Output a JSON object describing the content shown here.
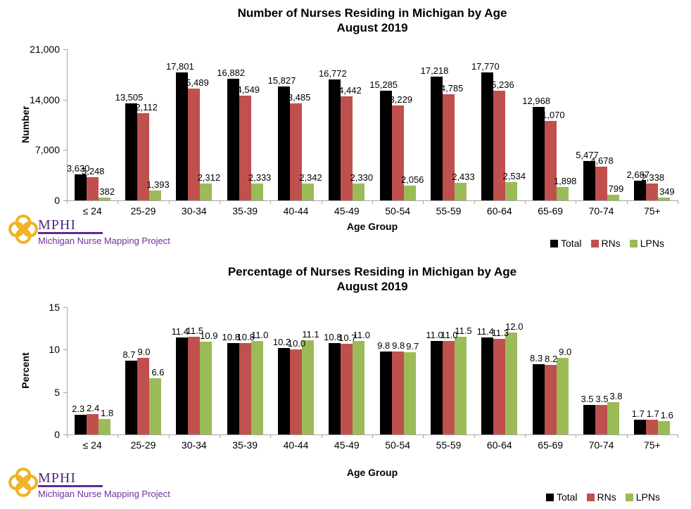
{
  "page": {
    "background": "#ffffff"
  },
  "brand": {
    "name": "MPHI",
    "tagline": "Michigan Nurse Mapping Project",
    "logo_gold": "#F0B323",
    "mphi_purple": "#4E2A84",
    "underline_purple": "#5C2D91",
    "tagline_purple": "#7030A0"
  },
  "colors": {
    "axis": "#A6A6A6",
    "total": "#000000",
    "rns": "#C0504D",
    "lpns": "#9BBB59"
  },
  "chart_data": [
    {
      "type": "bar",
      "title": "Number of Nurses Residing in Michigan by Age",
      "subtitle": "August 2019",
      "xlabel": "Age Group",
      "ylabel": "Number",
      "ylim": [
        0,
        21000
      ],
      "yticks": [
        0,
        7000,
        14000,
        21000
      ],
      "ytick_labels": [
        "0",
        "7,000",
        "14,000",
        "21,000"
      ],
      "grid": false,
      "legend_position": "bottom-right",
      "categories": [
        "≤ 24",
        "25-29",
        "30-34",
        "35-39",
        "40-44",
        "45-49",
        "50-54",
        "55-59",
        "60-64",
        "65-69",
        "70-74",
        "75+"
      ],
      "series": [
        {
          "name": "Total",
          "color": "#000000",
          "values": [
            3630,
            13505,
            17801,
            16882,
            15827,
            16772,
            15285,
            17218,
            17770,
            12968,
            5477,
            2687
          ],
          "labels": [
            "3,630",
            "13,505",
            "17,801",
            "16,882",
            "15,827",
            "16,772",
            "15,285",
            "17,218",
            "17,770",
            "12,968",
            "5,477",
            "2,687"
          ]
        },
        {
          "name": "RNs",
          "color": "#C0504D",
          "values": [
            3248,
            12112,
            15489,
            14549,
            13485,
            14442,
            13229,
            14785,
            15236,
            11070,
            4678,
            2338
          ],
          "labels": [
            "3,248",
            "12,112",
            "15,489",
            "14,549",
            "13,485",
            "14,442",
            "13,229",
            "14,785",
            "15,236",
            "11,070",
            "4,678",
            "2,338"
          ]
        },
        {
          "name": "LPNs",
          "color": "#9BBB59",
          "values": [
            382,
            1393,
            2312,
            2333,
            2342,
            2330,
            2056,
            2433,
            2534,
            1898,
            799,
            349
          ],
          "labels": [
            "382",
            "1,393",
            "2,312",
            "2,333",
            "2,342",
            "2,330",
            "2,056",
            "2,433",
            "2,534",
            "1,898",
            "799",
            "349"
          ]
        }
      ]
    },
    {
      "type": "bar",
      "title": "Percentage of Nurses Residing in Michigan by Age",
      "subtitle": "August 2019",
      "xlabel": "Age Group",
      "ylabel": "Percent",
      "ylim": [
        0,
        15
      ],
      "yticks": [
        0,
        5,
        10,
        15
      ],
      "ytick_labels": [
        "0",
        "5",
        "10",
        "15"
      ],
      "grid": false,
      "legend_position": "bottom-right",
      "categories": [
        "≤ 24",
        "25-29",
        "30-34",
        "35-39",
        "40-44",
        "45-49",
        "50-54",
        "55-59",
        "60-64",
        "65-69",
        "70-74",
        "75+"
      ],
      "series": [
        {
          "name": "Total",
          "color": "#000000",
          "values": [
            2.3,
            8.7,
            11.4,
            10.8,
            10.2,
            10.8,
            9.8,
            11.0,
            11.4,
            8.3,
            3.5,
            1.7
          ],
          "labels": [
            "2.3",
            "8.7",
            "11.4",
            "10.8",
            "10.2",
            "10.8",
            "9.8",
            "11.0",
            "11.4",
            "8.3",
            "3.5",
            "1.7"
          ]
        },
        {
          "name": "RNs",
          "color": "#C0504D",
          "values": [
            2.4,
            9.0,
            11.5,
            10.8,
            10.0,
            10.7,
            9.8,
            11.0,
            11.3,
            8.2,
            3.5,
            1.7
          ],
          "labels": [
            "2.4",
            "9.0",
            "11.5",
            "10.8",
            "10.0",
            "10.7",
            "9.8",
            "11.0",
            "11.3",
            "8.2",
            "3.5",
            "1.7"
          ]
        },
        {
          "name": "LPNs",
          "color": "#9BBB59",
          "values": [
            1.8,
            6.6,
            10.9,
            11.0,
            11.1,
            11.0,
            9.7,
            11.5,
            12.0,
            9.0,
            3.8,
            1.6
          ],
          "labels": [
            "1.8",
            "6.6",
            "10.9",
            "11.0",
            "11.1",
            "11.0",
            "9.7",
            "11.5",
            "12.0",
            "9.0",
            "3.8",
            "1.6"
          ]
        }
      ]
    }
  ]
}
